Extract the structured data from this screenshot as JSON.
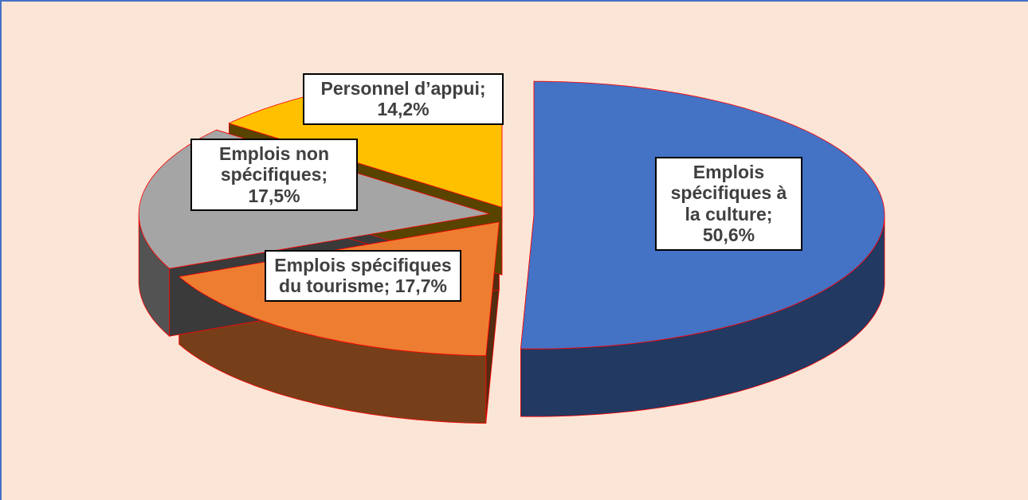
{
  "chart_data": {
    "type": "pie3d",
    "values": [
      50.6,
      17.7,
      17.5,
      14.2
    ],
    "value_labels": [
      "Emplois spécifiques à la culture; 50,6%",
      "Emplois spécifiques du tourisme; 17,7%",
      "Emplois non spécifiques; 17,5%",
      "Personnel d’appui; 14,2%"
    ],
    "colors": [
      "#4472c4",
      "#ed7d31",
      "#a5a5a5",
      "#ffc000"
    ]
  }
}
